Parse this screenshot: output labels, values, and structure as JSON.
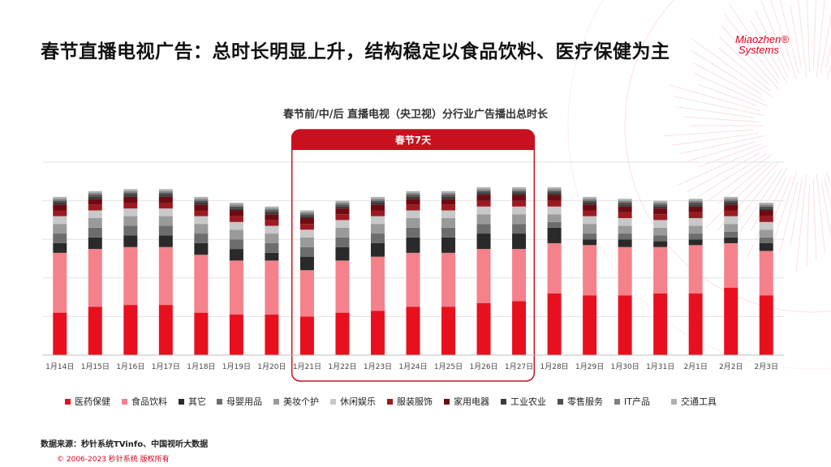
{
  "header": {
    "title": "春节直播电视广告：总时长明显上升，结构稳定以食品饮料、医疗保健为主",
    "logo_line1": "Miaozhen®",
    "logo_line2": "Systems"
  },
  "footer": {
    "source": "数据来源：秒针系统TVinfo、中国视听大数据",
    "copyright": "© 2006-2023 秒针系统 版权所有"
  },
  "colors": {
    "brand": "#d9001b"
  },
  "chart_data": {
    "type": "bar",
    "stacked": true,
    "title": "春节前/中/后  直播电视（央卫视）分行业广告播出总时长",
    "highlight": {
      "label": "春节7天",
      "from": "1月21日",
      "to": "1月27日"
    },
    "ylim": [
      0,
      100
    ],
    "grid": true,
    "legend_position": "bottom",
    "categories": [
      "1月14日",
      "1月15日",
      "1月16日",
      "1月17日",
      "1月18日",
      "1月19日",
      "1月20日",
      "1月21日",
      "1月22日",
      "1月23日",
      "1月24日",
      "1月25日",
      "1月26日",
      "1月27日",
      "1月28日",
      "1月29日",
      "1月30日",
      "1月31日",
      "2月1日",
      "2月2日",
      "2月3日"
    ],
    "series": [
      {
        "name": "医药保健",
        "color": "#e8101e",
        "values": [
          22,
          25,
          26,
          26,
          22,
          21,
          21,
          20,
          22,
          23,
          25,
          25,
          27,
          28,
          32,
          31,
          31,
          32,
          32,
          35,
          31
        ]
      },
      {
        "name": "食品饮料",
        "color": "#f5818b",
        "values": [
          31,
          30,
          30,
          30,
          30,
          28,
          28,
          24,
          27,
          28,
          28,
          28,
          28,
          27,
          26,
          26,
          25,
          24,
          25,
          23,
          23
        ]
      },
      {
        "name": "其它",
        "color": "#2a2a2a",
        "values": [
          5,
          6,
          6,
          6,
          6,
          6,
          4,
          7,
          7,
          7,
          8,
          8,
          8,
          8,
          8,
          3,
          4,
          3,
          3,
          3,
          4
        ]
      },
      {
        "name": "母婴用品",
        "color": "#6d6d6d",
        "values": [
          5,
          5,
          5,
          5,
          5,
          5,
          5,
          5,
          5,
          5,
          5,
          5,
          5,
          5,
          3,
          3,
          3,
          3,
          3,
          3,
          3
        ]
      },
      {
        "name": "美妆个护",
        "color": "#9a9a9a",
        "values": [
          5,
          5,
          5,
          5,
          5,
          5,
          5,
          5,
          5,
          5,
          5,
          5,
          5,
          5,
          4,
          5,
          4,
          4,
          4,
          4,
          4
        ]
      },
      {
        "name": "休闲娱乐",
        "color": "#c8c8c8",
        "values": [
          4,
          4,
          4,
          4,
          4,
          4,
          4,
          4,
          4,
          4,
          4,
          4,
          4,
          4,
          4,
          4,
          4,
          4,
          4,
          4,
          4
        ]
      },
      {
        "name": "服装服饰",
        "color": "#9c1a22",
        "values": [
          3,
          3,
          3,
          3,
          3,
          3,
          3,
          3,
          3,
          3,
          3,
          3,
          3,
          3,
          3,
          3,
          3,
          3,
          3,
          3,
          3
        ]
      },
      {
        "name": "家用电器",
        "color": "#6e0b12",
        "values": [
          3,
          3,
          3,
          3,
          3,
          3,
          3,
          3,
          3,
          3,
          3,
          3,
          3,
          3,
          3,
          3,
          3,
          3,
          3,
          3,
          3
        ]
      },
      {
        "name": "工业农业",
        "color": "#3a3a3a",
        "values": [
          1,
          1,
          1,
          1,
          1,
          1,
          1,
          1,
          1,
          1,
          1,
          1,
          1,
          1,
          1,
          1,
          1,
          1,
          1,
          1,
          1
        ]
      },
      {
        "name": "零售服务",
        "color": "#4f4f4f",
        "values": [
          1,
          1,
          1,
          1,
          1,
          1,
          1,
          1,
          1,
          1,
          1,
          1,
          1,
          1,
          1,
          1,
          1,
          1,
          1,
          1,
          1
        ]
      },
      {
        "name": "IT产品",
        "color": "#808080",
        "values": [
          1,
          1,
          1,
          1,
          1,
          1,
          1,
          1,
          1,
          1,
          1,
          1,
          1,
          1,
          1,
          1,
          1,
          1,
          1,
          1,
          1
        ]
      },
      {
        "name": "交通工具",
        "color": "#b0b0b0",
        "values": [
          1,
          1,
          1,
          1,
          1,
          1,
          1,
          1,
          1,
          1,
          1,
          1,
          1,
          1,
          1,
          1,
          1,
          1,
          1,
          1,
          1
        ]
      }
    ]
  }
}
